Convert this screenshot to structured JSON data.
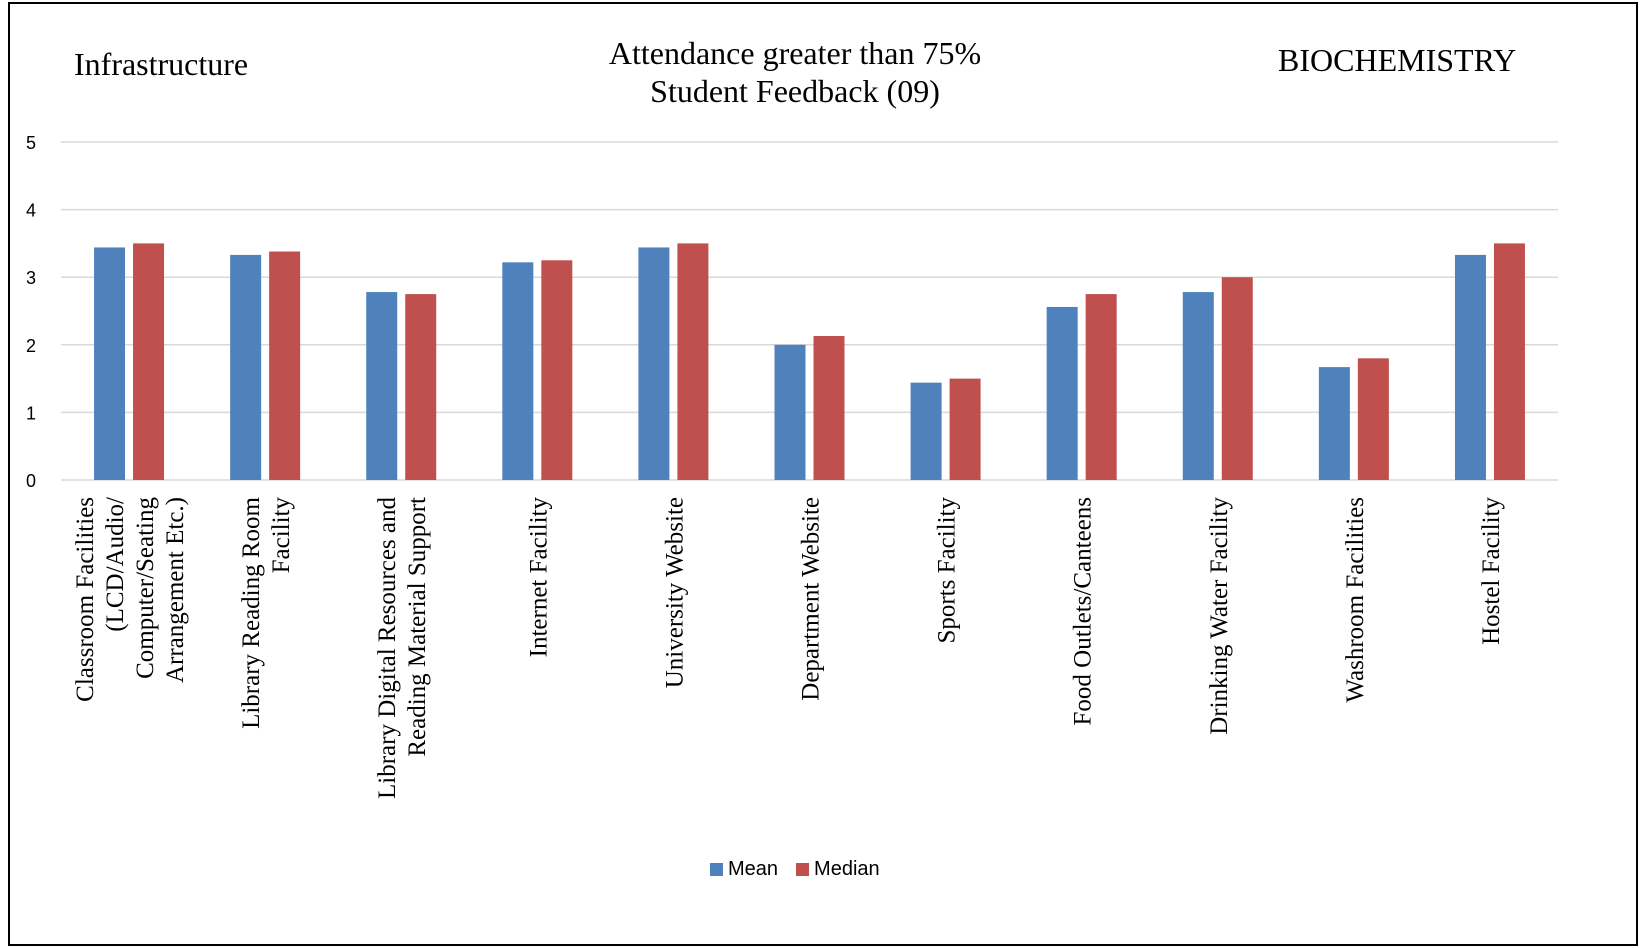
{
  "header": {
    "left_label": "Infrastructure",
    "right_label": "BIOCHEMISTRY",
    "title_line1": "Attendance greater than 75%",
    "title_line2": "Student Feedback (09)"
  },
  "chart_data": {
    "type": "bar",
    "categories": [
      [
        "Classroom Facilities",
        "(LCD/Audio/",
        "Computer/Seating",
        "Arrangement Etc.)"
      ],
      [
        "Library Reading Room",
        "Facility"
      ],
      [
        "Library Digital Resources and",
        "Reading Material Support"
      ],
      [
        "Internet Facility"
      ],
      [
        "University Website"
      ],
      [
        "Department Website"
      ],
      [
        "Sports Facility"
      ],
      [
        "Food Outlets/Canteens"
      ],
      [
        "Drinking Water Facility"
      ],
      [
        "Washroom Facilities"
      ],
      [
        "Hostel Facility"
      ]
    ],
    "series": [
      {
        "name": "Mean",
        "color": "#4F81BD",
        "values": [
          3.44,
          3.33,
          2.78,
          3.22,
          3.44,
          2.0,
          1.44,
          2.56,
          2.78,
          1.67,
          3.33
        ]
      },
      {
        "name": "Median",
        "color": "#C0504D",
        "values": [
          3.5,
          3.38,
          2.75,
          3.25,
          3.5,
          2.13,
          1.5,
          2.75,
          3.0,
          1.8,
          3.5
        ]
      }
    ],
    "ylim": [
      0,
      5
    ],
    "yticks": [
      "0",
      "1",
      "2",
      "3",
      "4",
      "5"
    ],
    "grid": true,
    "legend": "bottom-center"
  }
}
